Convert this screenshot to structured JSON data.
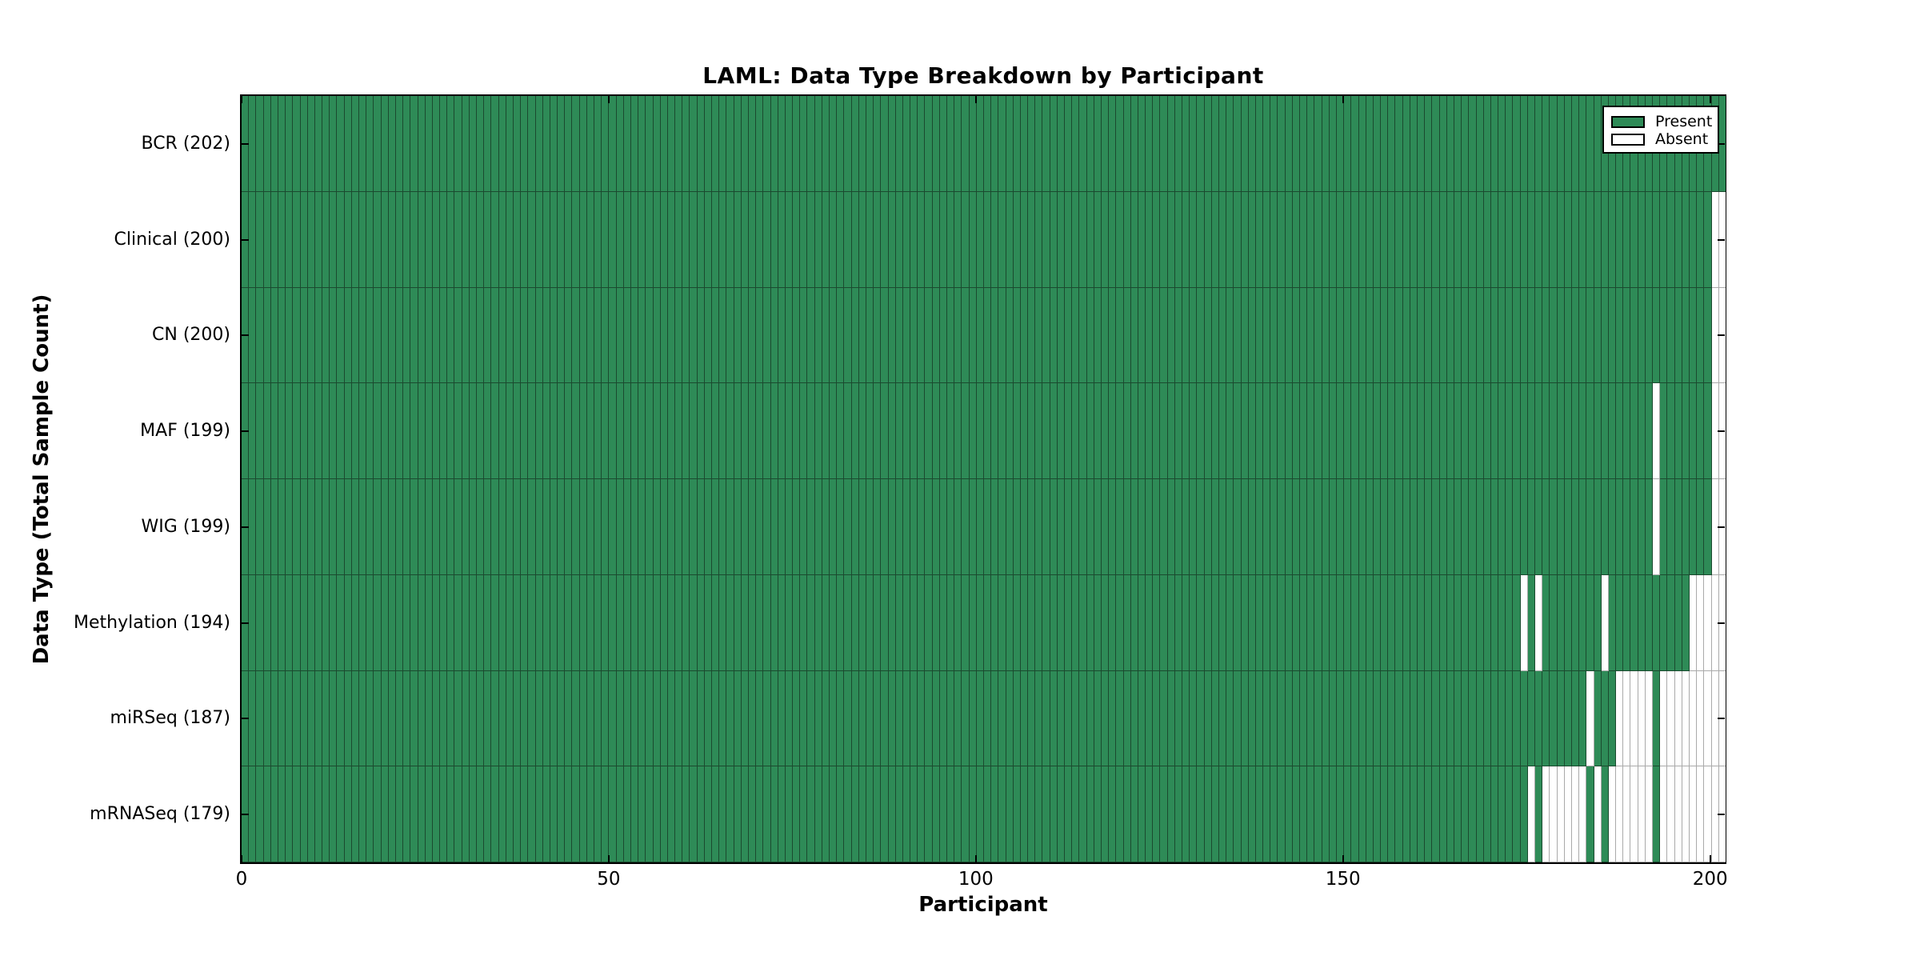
{
  "chart_data": {
    "type": "heatmap",
    "title": "LAML: Data Type Breakdown by Participant",
    "xlabel": "Participant",
    "ylabel": "Data Type (Total Sample Count)",
    "x_ticks": [
      0,
      50,
      100,
      150,
      200
    ],
    "x_range": [
      0,
      202
    ],
    "n_participants": 202,
    "grid": false,
    "legend_position": "upper right",
    "legend": [
      {
        "label": "Present",
        "color": "#2e8b57"
      },
      {
        "label": "Absent",
        "color": "#ffffff"
      }
    ],
    "colors": {
      "present": "#2e8b57",
      "present_edge": "#1b4a2f",
      "absent": "#ffffff",
      "absent_edge": "#aaaaaa",
      "spine": "#000000"
    },
    "rows": [
      {
        "label": "BCR (202)",
        "name": "BCR",
        "count": 202,
        "absent_participants": []
      },
      {
        "label": "Clinical (200)",
        "name": "Clinical",
        "count": 200,
        "absent_participants": [
          200,
          201
        ]
      },
      {
        "label": "CN (200)",
        "name": "CN",
        "count": 200,
        "absent_participants": [
          200,
          201
        ]
      },
      {
        "label": "MAF (199)",
        "name": "MAF",
        "count": 199,
        "absent_participants": [
          192,
          200,
          201
        ]
      },
      {
        "label": "WIG (199)",
        "name": "WIG",
        "count": 199,
        "absent_participants": [
          192,
          200,
          201
        ]
      },
      {
        "label": "Methylation (194)",
        "name": "Methylation",
        "count": 194,
        "absent_participants": [
          174,
          176,
          185,
          197,
          198,
          199,
          200,
          201
        ]
      },
      {
        "label": "miRSeq (187)",
        "name": "miRSeq",
        "count": 187,
        "absent_participants": [
          183,
          187,
          188,
          189,
          190,
          191,
          193,
          194,
          195,
          196,
          197,
          198,
          199,
          200,
          201
        ]
      },
      {
        "label": "mRNASeq (179)",
        "name": "mRNASeq",
        "count": 179,
        "absent_participants": [
          175,
          177,
          178,
          179,
          180,
          181,
          182,
          184,
          186,
          187,
          188,
          189,
          190,
          191,
          193,
          194,
          195,
          196,
          197,
          198,
          199,
          200,
          201
        ]
      }
    ]
  }
}
